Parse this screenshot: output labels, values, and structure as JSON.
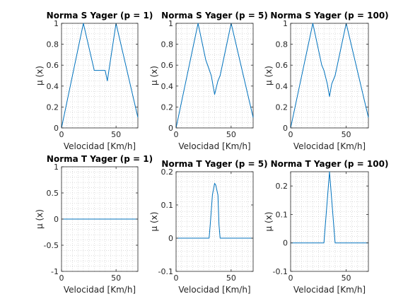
{
  "chart_data": [
    {
      "type": "line",
      "title": "Norma S Yager (p = 1)",
      "xlabel": "Velocidad [Km/h]",
      "ylabel": "μ (x)",
      "xlim": [
        0,
        70
      ],
      "ylim": [
        0,
        1
      ],
      "xticks": [
        0,
        50
      ],
      "yticks": [
        0,
        0.2,
        0.4,
        0.6,
        0.8,
        1
      ],
      "ytick_labels": [
        "0",
        "0.2",
        "0.4",
        "0.6",
        "0.8",
        "1"
      ],
      "grid": "minor-dotted",
      "series": [
        {
          "color": "#0072bd",
          "x": [
            0,
            20,
            30,
            40,
            42,
            50,
            70
          ],
          "y": [
            0,
            1,
            0.55,
            0.55,
            0.45,
            1,
            0.1
          ]
        }
      ]
    },
    {
      "type": "line",
      "title": "Norma S Yager (p = 5)",
      "xlabel": "Velocidad [Km/h]",
      "ylabel": "μ (x)",
      "xlim": [
        0,
        70
      ],
      "ylim": [
        0,
        1
      ],
      "xticks": [
        0,
        50
      ],
      "yticks": [
        0,
        0.2,
        0.4,
        0.6,
        0.8,
        1
      ],
      "ytick_labels": [
        "0",
        "0.2",
        "0.4",
        "0.6",
        "0.8",
        "1"
      ],
      "grid": "minor-dotted",
      "series": [
        {
          "color": "#0072bd",
          "x": [
            0,
            20,
            27,
            30,
            32,
            35,
            38,
            40,
            50,
            70
          ],
          "y": [
            0,
            1,
            0.65,
            0.56,
            0.5,
            0.32,
            0.45,
            0.5,
            1,
            0.1
          ]
        }
      ]
    },
    {
      "type": "line",
      "title": "Norma S Yager (p = 100)",
      "xlabel": "Velocidad [Km/h]",
      "ylabel": "μ (x)",
      "xlim": [
        0,
        70
      ],
      "ylim": [
        0,
        1
      ],
      "xticks": [
        0,
        50
      ],
      "yticks": [
        0,
        0.2,
        0.4,
        0.6,
        0.8,
        1
      ],
      "ytick_labels": [
        "0",
        "0.2",
        "0.4",
        "0.6",
        "0.8",
        "1"
      ],
      "grid": "minor-dotted",
      "series": [
        {
          "color": "#0072bd",
          "x": [
            0,
            20,
            28,
            30,
            33,
            35,
            37,
            40,
            50,
            70
          ],
          "y": [
            0,
            1,
            0.6,
            0.55,
            0.42,
            0.3,
            0.42,
            0.5,
            1,
            0.1
          ]
        }
      ]
    },
    {
      "type": "line",
      "title": "Norma T Yager (p = 1)",
      "xlabel": "Velocidad [Km/h]",
      "ylabel": "μ (x)",
      "xlim": [
        0,
        70
      ],
      "ylim": [
        -1,
        1
      ],
      "xticks": [
        0,
        50
      ],
      "yticks": [
        -1,
        -0.5,
        0,
        0.5,
        1
      ],
      "ytick_labels": [
        "-1",
        "-0.5",
        "0",
        "0.5",
        "1"
      ],
      "grid": "minor-dotted",
      "series": [
        {
          "color": "#0072bd",
          "x": [
            0,
            70
          ],
          "y": [
            0,
            0
          ]
        }
      ]
    },
    {
      "type": "line",
      "title": "Norma T Yager (p = 5)",
      "xlabel": "Velocidad [Km/h]",
      "ylabel": "μ (x)",
      "xlim": [
        0,
        70
      ],
      "ylim": [
        -0.1,
        0.2
      ],
      "xticks": [
        0,
        50
      ],
      "yticks": [
        -0.1,
        0,
        0.1,
        0.2
      ],
      "ytick_labels": [
        "-0.1",
        "0",
        "0.1",
        "0.2"
      ],
      "grid": "minor-dotted",
      "series": [
        {
          "color": "#0072bd",
          "x": [
            0,
            30,
            31,
            33,
            35,
            36,
            38,
            39,
            40,
            70
          ],
          "y": [
            0,
            0,
            0.04,
            0.13,
            0.165,
            0.16,
            0.13,
            0.04,
            0,
            0
          ]
        }
      ]
    },
    {
      "type": "line",
      "title": "Norma T Yager (p = 100)",
      "xlabel": "Velocidad [Km/h]",
      "ylabel": "μ (x)",
      "xlim": [
        0,
        70
      ],
      "ylim": [
        -0.1,
        0.25
      ],
      "xticks": [
        0,
        50
      ],
      "yticks": [
        -0.1,
        0,
        0.1,
        0.2
      ],
      "ytick_labels": [
        "-0.1",
        "0",
        "0.1",
        "0.2"
      ],
      "grid": "minor-dotted",
      "series": [
        {
          "color": "#0072bd",
          "x": [
            0,
            30,
            35,
            40,
            70
          ],
          "y": [
            0,
            0,
            0.25,
            0,
            0
          ]
        }
      ]
    }
  ]
}
